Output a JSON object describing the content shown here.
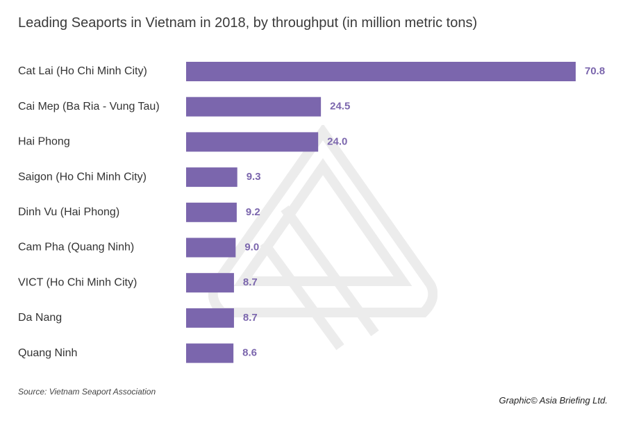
{
  "chart_data": {
    "type": "bar",
    "orientation": "horizontal",
    "title": "Leading Seaports in Vietnam in 2018, by throughput (in million metric tons)",
    "categories": [
      "Cat Lai (Ho Chi Minh City)",
      "Cai Mep (Ba Ria - Vung Tau)",
      "Hai Phong",
      "Saigon (Ho Chi Minh City)",
      "Dinh Vu (Hai Phong)",
      "Cam Pha (Quang Ninh)",
      "VICT (Ho Chi Minh City)",
      "Da Nang",
      "Quang Ninh"
    ],
    "values": [
      70.8,
      24.5,
      24.0,
      9.3,
      9.2,
      9.0,
      8.7,
      8.7,
      8.6
    ],
    "value_labels": [
      "70.8",
      "24.5",
      "24.0",
      "9.3",
      "9.2",
      "9.0",
      "8.7",
      "8.7",
      "8.6"
    ],
    "xlim": [
      0,
      70.8
    ],
    "grid": false,
    "bar_color": "#7b66ad",
    "label_color": "#7b66ad"
  },
  "footer": {
    "source": "Source: Vietnam Seaport Association",
    "credit": "Graphic© Asia Briefing Ltd."
  }
}
